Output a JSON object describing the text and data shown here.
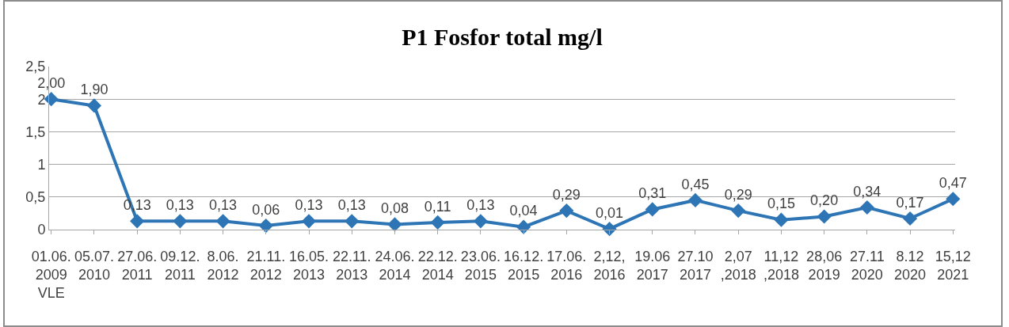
{
  "chart_data": {
    "type": "line",
    "title": "P1 Fosfor total mg/l",
    "categories": [
      "01.06.\n2009\nVLE",
      "05.07.\n2010",
      "27.06.\n2011",
      "09.12.\n2011",
      "8.06.\n2012",
      "21.11.\n2012",
      "16.05.\n2013",
      "22.11.\n2013",
      "24.06.\n2014",
      "22.12.\n2014",
      "23.06.\n2015",
      "16.12.\n2015",
      "17.06.\n2016",
      "2,12,\n2016",
      "19.06\n2017",
      "27.10\n2017",
      "2,07\n,2018",
      "11,12\n,2018",
      "28,06\n2019",
      "27.11\n2020",
      "8.12\n2020",
      "15,12\n2021"
    ],
    "series": [
      {
        "color": "#2e75b6",
        "values": [
          2.0,
          1.9,
          0.13,
          0.13,
          0.13,
          0.06,
          0.13,
          0.13,
          0.08,
          0.11,
          0.13,
          0.04,
          0.29,
          0.01,
          0.31,
          0.45,
          0.29,
          0.15,
          0.2,
          0.34,
          0.17,
          0.47
        ],
        "value_labels": [
          "2,00",
          "1,90",
          "0,13",
          "0,13",
          "0,13",
          "0,06",
          "0,13",
          "0,13",
          "0,08",
          "0,11",
          "0,13",
          "0,04",
          "0,29",
          "0,01",
          "0,31",
          "0,45",
          "0,29",
          "0,15",
          "0,20",
          "0,34",
          "0,17",
          "0,47"
        ]
      }
    ],
    "ylim": [
      0,
      2.5
    ],
    "yticks": [
      0,
      {
        "value": 0.5,
        "label": "0,5"
      },
      1,
      {
        "value": 1.5,
        "label": "1,5"
      },
      2,
      {
        "value": 2.5,
        "label": "2,5"
      }
    ],
    "grid": "y",
    "marker": "diamond",
    "line_style": "solid"
  }
}
